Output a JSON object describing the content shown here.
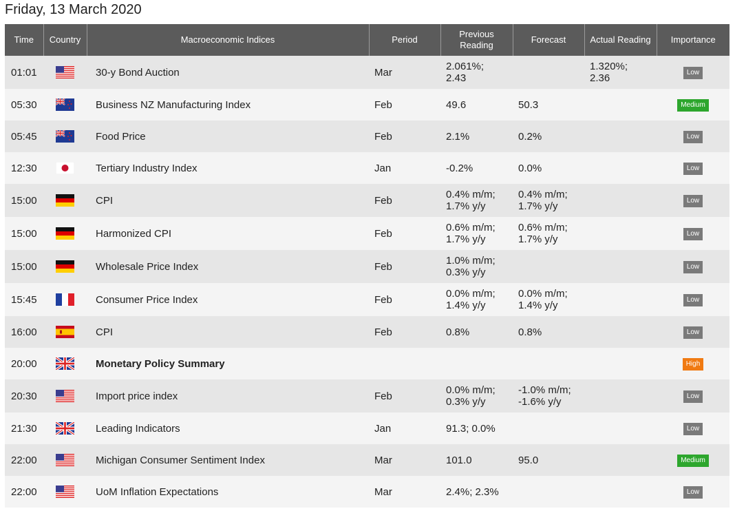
{
  "page": {
    "date": "Friday, 13 March 2020"
  },
  "headers": {
    "time": "Time",
    "country": "Country",
    "index": "Macroeconomic Indices",
    "period": "Period",
    "previous_line1": "Previous",
    "previous_line2": "Reading",
    "forecast": "Forecast",
    "actual": "Actual Reading",
    "importance": "Importance"
  },
  "rows": [
    {
      "time": "01:01",
      "country": "us",
      "name": "30-y Bond Auction",
      "period": "Mar",
      "prev1": "2.061%;",
      "prev2": "2.43",
      "fc1": "",
      "fc2": "",
      "act1": "1.320%;",
      "act2": "2.36",
      "importance": "Low",
      "bold": false
    },
    {
      "time": "05:30",
      "country": "nz",
      "name": "Business NZ Manufacturing Index",
      "period": "Feb",
      "prev1": "49.6",
      "prev2": "",
      "fc1": "50.3",
      "fc2": "",
      "act1": "",
      "act2": "",
      "importance": "Medium",
      "bold": false
    },
    {
      "time": "05:45",
      "country": "nz",
      "name": "Food Price",
      "period": "Feb",
      "prev1": "2.1%",
      "prev2": "",
      "fc1": "0.2%",
      "fc2": "",
      "act1": "",
      "act2": "",
      "importance": "Low",
      "bold": false
    },
    {
      "time": "12:30",
      "country": "jp",
      "name": "Tertiary Industry Index",
      "period": "Jan",
      "prev1": "-0.2%",
      "prev2": "",
      "fc1": "0.0%",
      "fc2": "",
      "act1": "",
      "act2": "",
      "importance": "Low",
      "bold": false
    },
    {
      "time": "15:00",
      "country": "de",
      "name": "CPI",
      "period": "Feb",
      "prev1": "0.4% m/m;",
      "prev2": "1.7% y/y",
      "fc1": "0.4% m/m;",
      "fc2": "1.7% y/y",
      "act1": "",
      "act2": "",
      "importance": "Low",
      "bold": false
    },
    {
      "time": "15:00",
      "country": "de",
      "name": "Harmonized CPI",
      "period": "Feb",
      "prev1": "0.6% m/m;",
      "prev2": "1.7% y/y",
      "fc1": "0.6% m/m;",
      "fc2": "1.7% y/y",
      "act1": "",
      "act2": "",
      "importance": "Low",
      "bold": false
    },
    {
      "time": "15:00",
      "country": "de",
      "name": "Wholesale Price Index",
      "period": "Feb",
      "prev1": "1.0% m/m;",
      "prev2": "0.3% y/y",
      "fc1": "",
      "fc2": "",
      "act1": "",
      "act2": "",
      "importance": "Low",
      "bold": false
    },
    {
      "time": "15:45",
      "country": "fr",
      "name": "Consumer Price Index",
      "period": "Feb",
      "prev1": "0.0% m/m;",
      "prev2": "1.4% y/y",
      "fc1": "0.0% m/m;",
      "fc2": "1.4% y/y",
      "act1": "",
      "act2": "",
      "importance": "Low",
      "bold": false
    },
    {
      "time": "16:00",
      "country": "es",
      "name": "CPI",
      "period": "Feb",
      "prev1": "0.8%",
      "prev2": "",
      "fc1": "0.8%",
      "fc2": "",
      "act1": "",
      "act2": "",
      "importance": "Low",
      "bold": false
    },
    {
      "time": "20:00",
      "country": "gb",
      "name": "Monetary Policy Summary",
      "period": "",
      "prev1": "",
      "prev2": "",
      "fc1": "",
      "fc2": "",
      "act1": "",
      "act2": "",
      "importance": "High",
      "bold": true
    },
    {
      "time": "20:30",
      "country": "us",
      "name": "Import price index",
      "period": "Feb",
      "prev1": "0.0% m/m;",
      "prev2": "0.3% y/y",
      "fc1": "-1.0% m/m;",
      "fc2": "-1.6% y/y",
      "act1": "",
      "act2": "",
      "importance": "Low",
      "bold": false
    },
    {
      "time": "21:30",
      "country": "gb",
      "name": "Leading Indicators",
      "period": "Jan",
      "prev1": "91.3; 0.0%",
      "prev2": "",
      "fc1": "",
      "fc2": "",
      "act1": "",
      "act2": "",
      "importance": "Low",
      "bold": false
    },
    {
      "time": "22:00",
      "country": "us",
      "name": "Michigan Consumer Sentiment Index",
      "period": "Mar",
      "prev1": "101.0",
      "prev2": "",
      "fc1": "95.0",
      "fc2": "",
      "act1": "",
      "act2": "",
      "importance": "Medium",
      "bold": false
    },
    {
      "time": "22:00",
      "country": "us",
      "name": "UoM Inflation Expectations",
      "period": "Mar",
      "prev1": "2.4%; 2.3%",
      "prev2": "",
      "fc1": "",
      "fc2": "",
      "act1": "",
      "act2": "",
      "importance": "Low",
      "bold": false
    }
  ],
  "colors": {
    "header_bg": "#5b5b5b",
    "row_odd": "#e6e6e6",
    "row_even": "#f4f4f4",
    "low": "#7a7a7a",
    "medium": "#2da62d",
    "high": "#f07a12"
  }
}
